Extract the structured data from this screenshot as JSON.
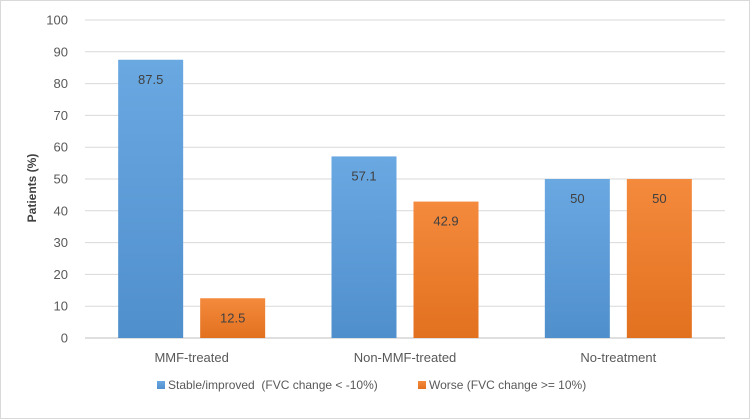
{
  "chart_data": {
    "type": "bar",
    "title": "",
    "xlabel": "",
    "ylabel": "Patients (%)",
    "ylim": [
      0,
      100
    ],
    "yticks": [
      0,
      10,
      20,
      30,
      40,
      50,
      60,
      70,
      80,
      90,
      100
    ],
    "grid": true,
    "legend_position": "bottom",
    "categories": [
      "MMF-treated",
      "Non-MMF-treated",
      "No-treatment"
    ],
    "series": [
      {
        "name": "Stable/improved  (FVC change < -10%)",
        "color": "#5b9bd5",
        "values": [
          87.5,
          57.1,
          50
        ],
        "labels": [
          "87.5",
          "57.1",
          "50"
        ]
      },
      {
        "name": "Worse (FVC change >= 10%)",
        "color": "#ed7d31",
        "values": [
          12.5,
          42.9,
          50
        ],
        "labels": [
          "12.5",
          "42.9",
          "50"
        ]
      }
    ]
  }
}
